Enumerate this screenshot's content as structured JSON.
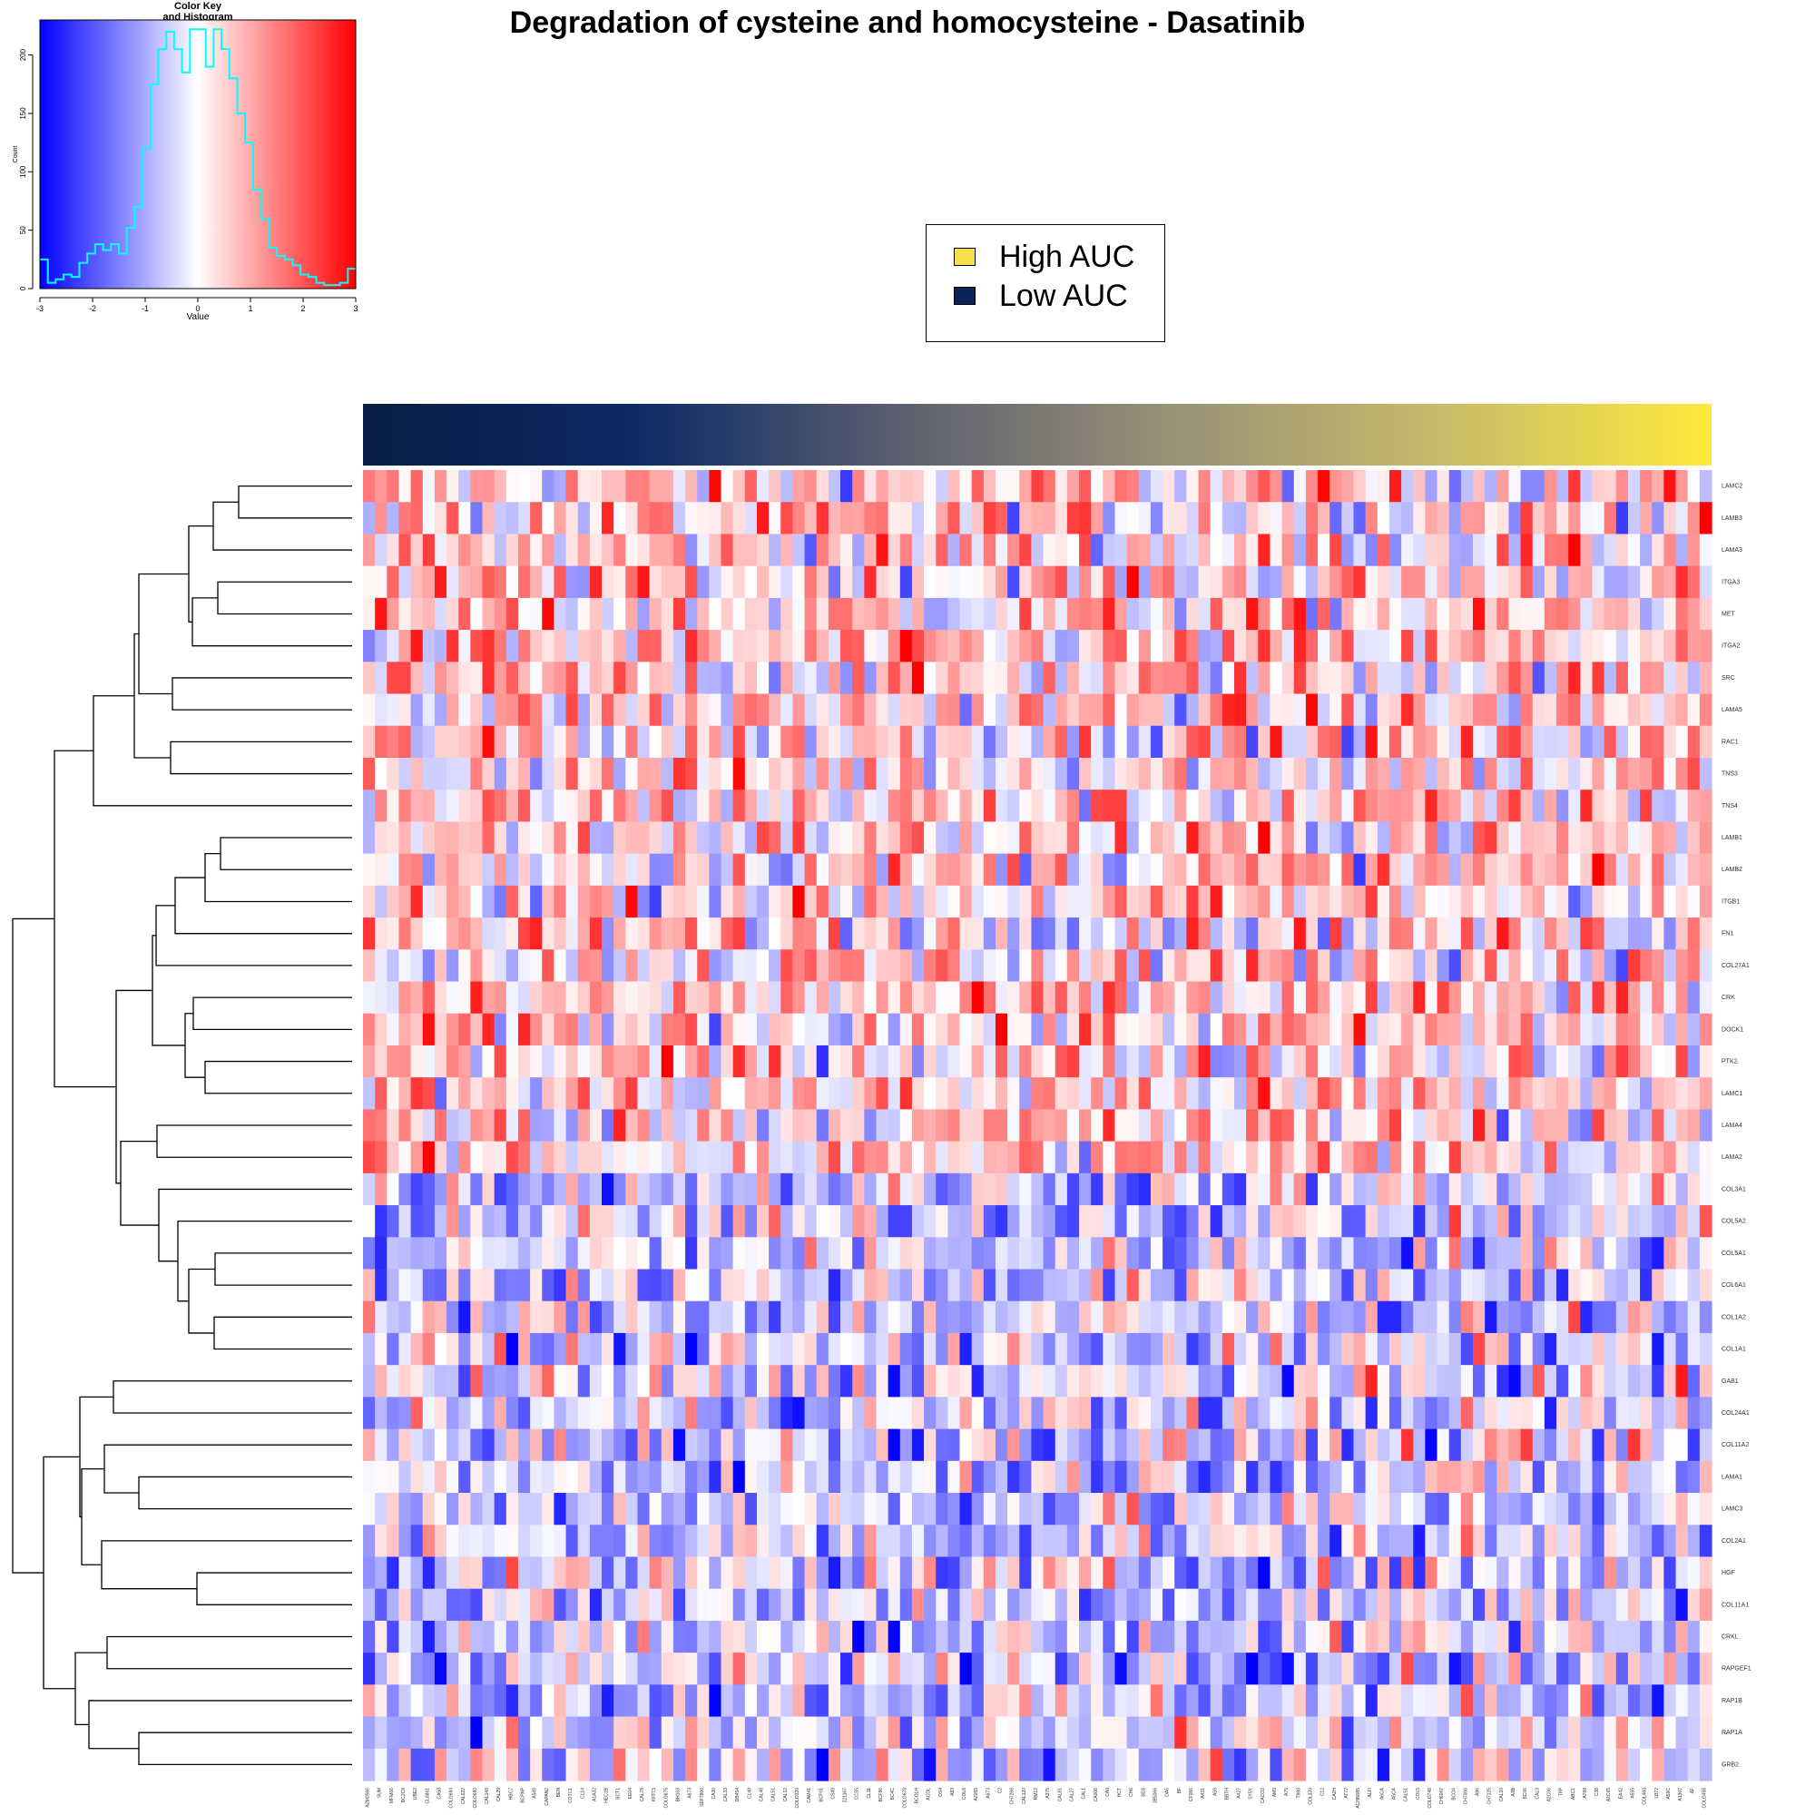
{
  "chart_data": [
    {
      "type": "heatmap",
      "title": "Degradation of cysteine and homocysteine - Dasatinib",
      "legend": {
        "placement": "top-center",
        "entries": [
          {
            "label": "High AUC",
            "color": "#f5e04c"
          },
          {
            "label": "Low AUC",
            "color": "#0b2455"
          }
        ]
      },
      "column_annotation": {
        "gradient_colors": [
          "#0a1e44",
          "#0b2a66",
          "#5c6070",
          "#9a9176",
          "#c8bb6a",
          "#ffe93c"
        ]
      },
      "color_scale": {
        "low": "#0000ff",
        "mid": "#ffffff",
        "high": "#ff0000",
        "min": -3,
        "max": 3
      },
      "rows": [
        "LAMC2",
        "LAMB3",
        "LAMA3",
        "ITGA3",
        "MET",
        "ITGA2",
        "SRC",
        "LAMA5",
        "RAC1",
        "TNS3",
        "TNS4",
        "LAMB1",
        "LAMB2",
        "ITGB1",
        "FN1",
        "COL27A1",
        "CRK",
        "DOCK1",
        "PTK2",
        "LAMC1",
        "LAMA4",
        "LAMA2",
        "COL3A1",
        "COL5A2",
        "COL5A1",
        "COL6A1",
        "COL1A2",
        "COL1A1",
        "GAB1",
        "COL24A1",
        "COL11A2",
        "LAMA1",
        "LAMC3",
        "COL2A1",
        "HGF",
        "COL11A1",
        "CRKL",
        "RAPGEF1",
        "RAP1B",
        "RAP1A",
        "GRB2"
      ],
      "columns": [
        "A2M0566",
        "SUM",
        "MFM66",
        "BC2C8",
        "UBE2",
        "CL6861",
        "CA50",
        "COLO684",
        "CAL622",
        "COLO680",
        "CAL148",
        "CAL29",
        "HBC7",
        "BCPAP",
        "A549",
        "CAPAN2",
        "BEN",
        "COTC1",
        "CL14",
        "A1A32",
        "HEC1B",
        "BCT1",
        "EE04",
        "CAL78",
        "KFF73",
        "COLO675",
        "BH163",
        "A673",
        "SEF7806",
        "CA30",
        "CAL33",
        "DB454",
        "CL40",
        "CAL48",
        "CAL51",
        "CAL12",
        "COLO320",
        "CAM41",
        "BCF01",
        "CS49",
        "221167",
        "CCS5",
        "CL11",
        "BCF86",
        "BC4C",
        "COLO678",
        "BCOLH",
        "ACOL",
        "DS4",
        "A83",
        "COL8",
        "A2059",
        "A673",
        "C2",
        "CH7266",
        "CAL120",
        "RM12",
        "A375",
        "CAL81",
        "CAL27",
        "CAL1",
        "CA006",
        "CA0",
        "HCT",
        "CH6",
        "SES",
        "JB5066",
        "DA6",
        "BF",
        "CF066",
        "A431",
        "A59",
        "BBTH",
        "A427",
        "SY5Y",
        "CACO2",
        "AM9",
        "A75",
        "T980",
        "COL320",
        "C12",
        "CA2H",
        "AT72",
        "ACHN085",
        "ALFI",
        "A6CA",
        "A5CA",
        "CAL51",
        "COL5",
        "COLO748",
        "CH6067",
        "BCO4",
        "CH7006",
        "A96",
        "CH7125",
        "CAL10",
        "A1B",
        "BC06",
        "CAL3",
        "A2C06",
        "T8P",
        "ABC1",
        "A788",
        "C38",
        "A2C65",
        "EA42",
        "A555",
        "COL460",
        "LB72",
        "A59C",
        "A1307",
        "AF",
        "COLO458"
      ],
      "histogram": {
        "title": "Color Key\nand Histogram",
        "xlabel": "Value",
        "ylabel": "Count",
        "xlim": [
          -3,
          3
        ],
        "ylim": [
          0,
          230
        ],
        "x_ticks": [
          -3,
          -2,
          -1,
          0,
          1,
          2,
          3
        ],
        "y_ticks": [
          0,
          50,
          100,
          150,
          200
        ],
        "bins": [
          -3.0,
          -2.85,
          -2.7,
          -2.55,
          -2.4,
          -2.25,
          -2.1,
          -1.95,
          -1.8,
          -1.65,
          -1.5,
          -1.35,
          -1.2,
          -1.05,
          -0.9,
          -0.75,
          -0.6,
          -0.45,
          -0.3,
          -0.15,
          0.0,
          0.15,
          0.3,
          0.45,
          0.6,
          0.75,
          0.9,
          1.05,
          1.2,
          1.35,
          1.5,
          1.65,
          1.8,
          1.95,
          2.1,
          2.25,
          2.4,
          2.55,
          2.7,
          2.85
        ],
        "counts": [
          25,
          5,
          8,
          12,
          10,
          22,
          30,
          38,
          33,
          38,
          30,
          52,
          70,
          120,
          175,
          205,
          220,
          205,
          185,
          222,
          222,
          190,
          222,
          205,
          180,
          150,
          125,
          85,
          60,
          35,
          28,
          25,
          20,
          12,
          10,
          5,
          3,
          3,
          5,
          17
        ]
      }
    }
  ]
}
